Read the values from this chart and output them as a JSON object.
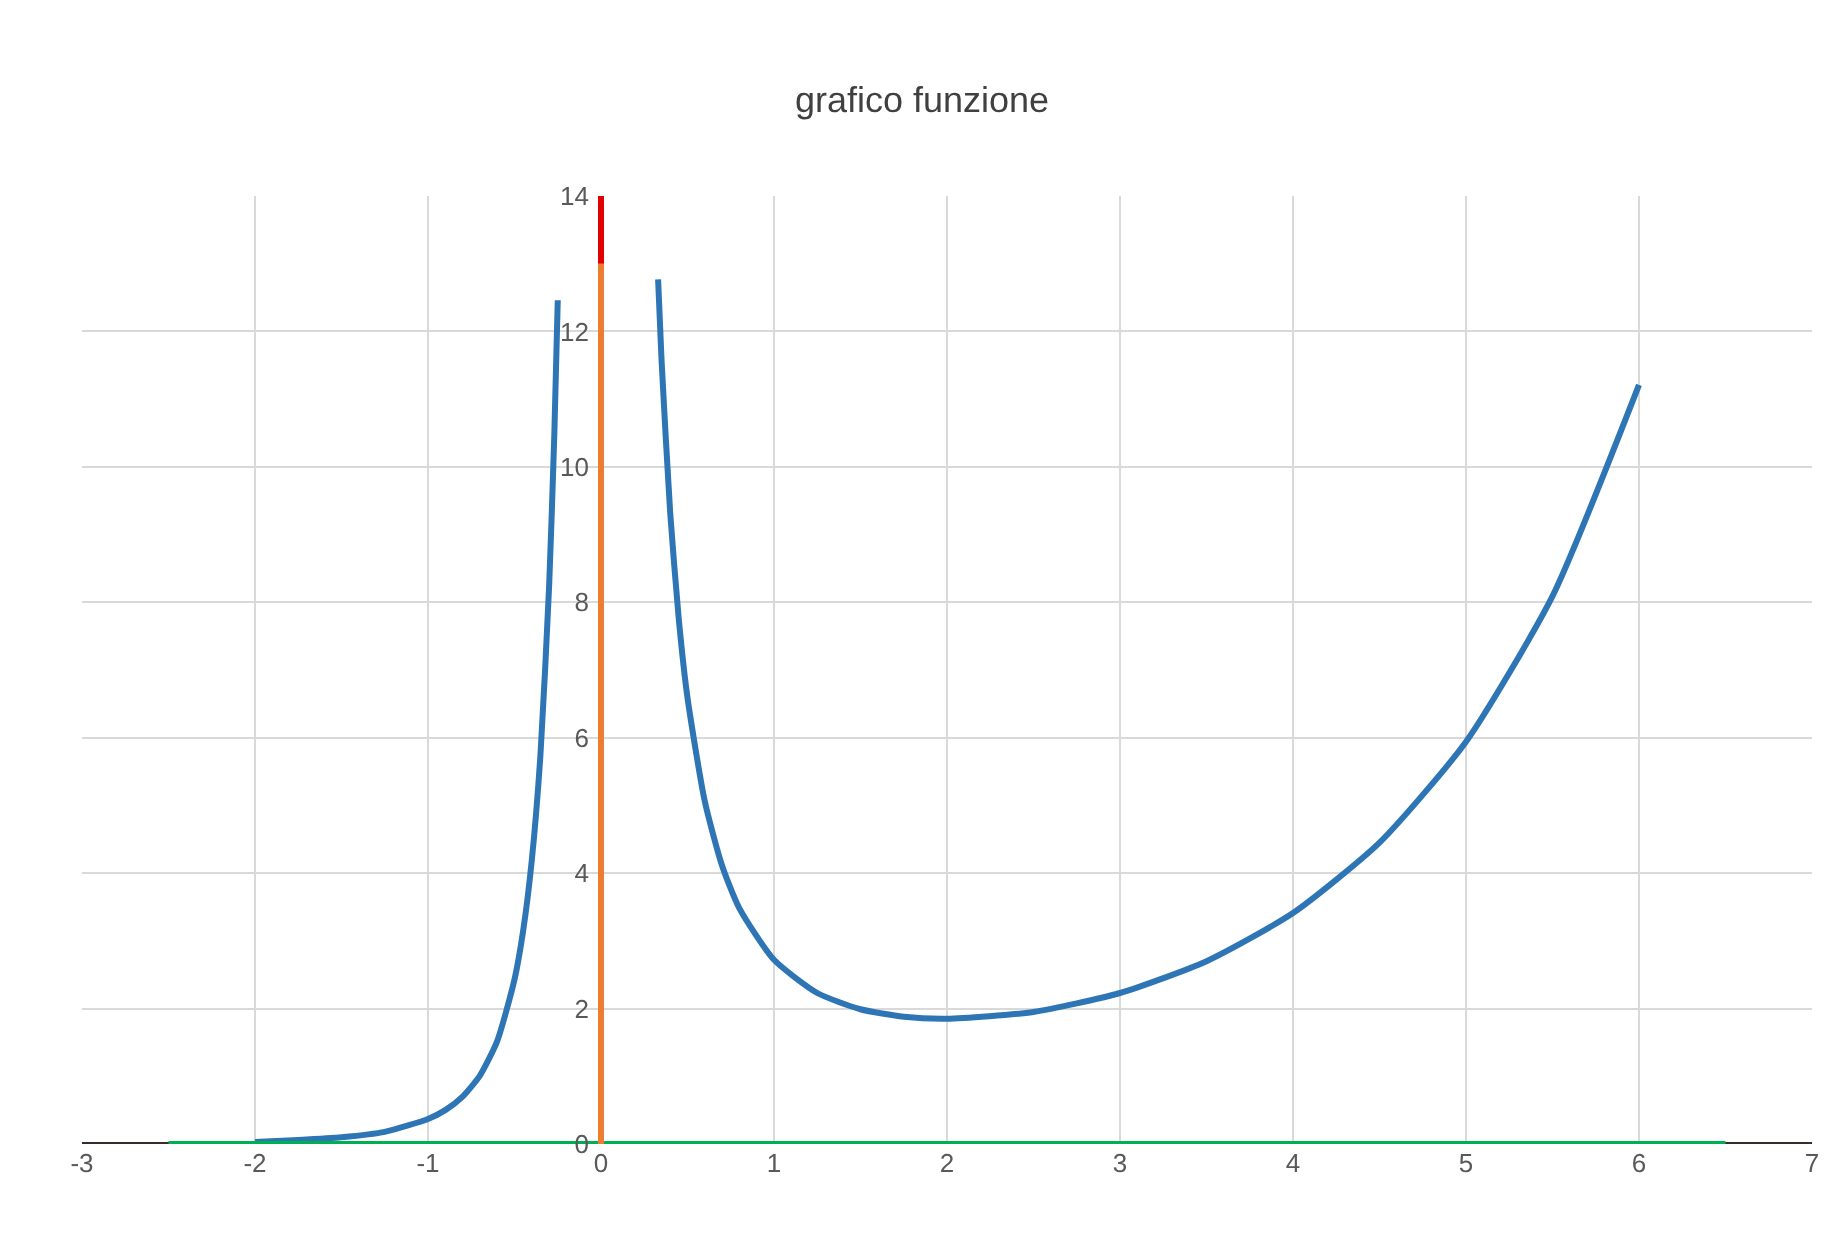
{
  "chart_data": {
    "type": "line",
    "title": "grafico funzione",
    "xlim": [
      -3,
      7
    ],
    "xticks": [
      -3,
      -2,
      -1,
      0,
      1,
      2,
      3,
      4,
      5,
      6,
      7
    ],
    "ylim": [
      0,
      14
    ],
    "yticks": [
      0,
      2,
      4,
      6,
      8,
      10,
      12,
      14
    ],
    "grid": true,
    "marker": "none",
    "line_style": "solid",
    "series": [
      {
        "color": "#2e75b6",
        "x": [
          -2,
          -1.75,
          -1.5,
          -1.25,
          -1,
          -0.9,
          -0.8,
          -0.7,
          -0.6,
          -0.5,
          -0.45,
          -0.4,
          -0.35,
          -0.3,
          -0.27,
          -0.25
        ],
        "values": [
          0.03,
          0.06,
          0.1,
          0.18,
          0.37,
          0.5,
          0.7,
          1.01,
          1.52,
          2.43,
          3.15,
          4.19,
          5.75,
          8.23,
          10.47,
          12.46
        ]
      },
      {
        "color": "#2e75b6",
        "x": [
          0.33,
          0.35,
          0.4,
          0.45,
          0.5,
          0.6,
          0.7,
          0.8,
          1,
          1.25,
          1.5,
          1.75,
          2,
          2.5,
          3,
          3.5,
          4,
          4.5,
          5,
          5.5,
          6
        ],
        "values": [
          12.77,
          11.58,
          9.32,
          7.74,
          6.59,
          5.06,
          4.11,
          3.48,
          2.72,
          2.23,
          1.99,
          1.88,
          1.85,
          1.95,
          2.23,
          2.7,
          3.41,
          4.45,
          5.94,
          8.09,
          11.21
        ]
      },
      {
        "color": "#00b050",
        "x": [
          -2.5,
          6.5
        ],
        "values": [
          0,
          0
        ]
      },
      {
        "color": "#ed7d31",
        "x": [
          0,
          0
        ],
        "values": [
          0,
          13
        ]
      },
      {
        "color": "#e00000",
        "x": [
          0,
          0
        ],
        "values": [
          13,
          14
        ]
      }
    ]
  }
}
